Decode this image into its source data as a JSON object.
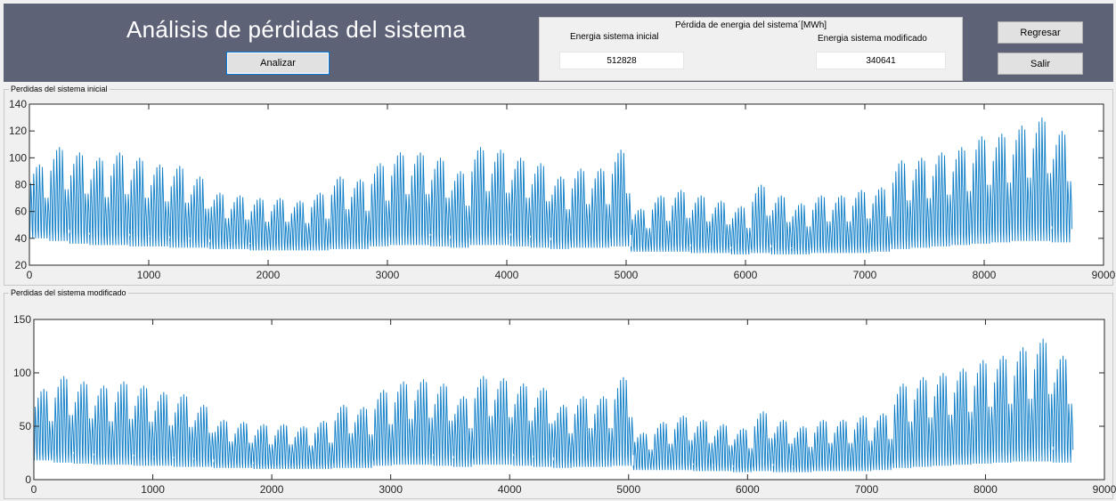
{
  "header": {
    "title": "Análisis de pérdidas del sistema",
    "analyze_label": "Analizar",
    "back_label": "Regresar",
    "exit_label": "Salir"
  },
  "energy_panel": {
    "title": "Pérdida de energia del sistema´[MWh]",
    "initial_label": "Energia sistema inicial",
    "initial_value": "512828",
    "modified_label": "Energia sistema modificado",
    "modified_value": "340641"
  },
  "colors": {
    "header_bg": "#5d6277",
    "series": "#0072bd",
    "series_light": "#4aa3df"
  },
  "chart_data": [
    {
      "panel_title": "Perdidas del sistema inicial",
      "type": "line",
      "xlim": [
        0,
        9000
      ],
      "ylim": [
        20,
        140
      ],
      "xticks": [
        "0",
        "1000",
        "2000",
        "3000",
        "4000",
        "5000",
        "6000",
        "7000",
        "8000",
        "9000"
      ],
      "yticks": [
        "20",
        "40",
        "60",
        "80",
        "100",
        "120",
        "140"
      ],
      "series": [
        {
          "week_start_hour": [
            0,
            168,
            336,
            504,
            672,
            840,
            1008,
            1176,
            1344,
            1512,
            1680,
            1848,
            2016,
            2184,
            2352,
            2520,
            2688,
            2856,
            3024,
            3192,
            3360,
            3528,
            3696,
            3864,
            4032,
            4200,
            4368,
            4536,
            4704,
            4872,
            5040,
            5208,
            5376,
            5544,
            5712,
            5880,
            6048,
            6216,
            6384,
            6552,
            6720,
            6888,
            7056,
            7224,
            7392,
            7560,
            7728,
            7896,
            8064,
            8232,
            8400,
            8568
          ],
          "weekly_peak": [
            95,
            108,
            104,
            100,
            104,
            100,
            95,
            94,
            86,
            74,
            72,
            70,
            70,
            68,
            74,
            86,
            84,
            96,
            104,
            104,
            100,
            90,
            108,
            106,
            100,
            96,
            86,
            92,
            92,
            106,
            62,
            72,
            76,
            72,
            68,
            64,
            80,
            72,
            66,
            72,
            72,
            76,
            78,
            98,
            100,
            104,
            108,
            116,
            118,
            124,
            130,
            120
          ],
          "weekly_min": [
            40,
            38,
            36,
            35,
            35,
            34,
            34,
            33,
            33,
            32,
            32,
            31,
            31,
            31,
            31,
            32,
            32,
            34,
            35,
            35,
            34,
            33,
            35,
            35,
            34,
            33,
            32,
            33,
            33,
            34,
            30,
            30,
            30,
            29,
            29,
            28,
            29,
            28,
            28,
            29,
            29,
            29,
            30,
            32,
            33,
            34,
            35,
            36,
            37,
            38,
            38,
            37
          ]
        }
      ]
    },
    {
      "panel_title": "Perdidas del sistema modificado",
      "type": "line",
      "xlim": [
        0,
        9000
      ],
      "ylim": [
        0,
        150
      ],
      "xticks": [
        "0",
        "1000",
        "2000",
        "3000",
        "4000",
        "5000",
        "6000",
        "7000",
        "8000",
        "9000"
      ],
      "yticks": [
        "0",
        "50",
        "100",
        "150"
      ],
      "series": [
        {
          "week_start_hour": [
            0,
            168,
            336,
            504,
            672,
            840,
            1008,
            1176,
            1344,
            1512,
            1680,
            1848,
            2016,
            2184,
            2352,
            2520,
            2688,
            2856,
            3024,
            3192,
            3360,
            3528,
            3696,
            3864,
            4032,
            4200,
            4368,
            4536,
            4704,
            4872,
            5040,
            5208,
            5376,
            5544,
            5712,
            5880,
            6048,
            6216,
            6384,
            6552,
            6720,
            6888,
            7056,
            7224,
            7392,
            7560,
            7728,
            7896,
            8064,
            8232,
            8400,
            8568
          ],
          "weekly_peak": [
            85,
            97,
            92,
            88,
            92,
            88,
            82,
            80,
            70,
            56,
            54,
            52,
            52,
            50,
            55,
            70,
            68,
            84,
            92,
            94,
            90,
            78,
            97,
            95,
            90,
            86,
            70,
            78,
            78,
            96,
            44,
            54,
            60,
            56,
            52,
            48,
            64,
            56,
            50,
            56,
            56,
            60,
            62,
            90,
            96,
            100,
            104,
            112,
            116,
            124,
            132,
            116
          ],
          "weekly_min": [
            18,
            16,
            15,
            14,
            14,
            13,
            13,
            12,
            12,
            11,
            11,
            10,
            10,
            10,
            10,
            11,
            11,
            13,
            14,
            14,
            13,
            12,
            14,
            14,
            13,
            12,
            11,
            12,
            12,
            13,
            9,
            9,
            9,
            8,
            8,
            7,
            8,
            7,
            7,
            8,
            8,
            8,
            9,
            11,
            12,
            13,
            14,
            15,
            16,
            17,
            17,
            16
          ]
        }
      ]
    }
  ]
}
